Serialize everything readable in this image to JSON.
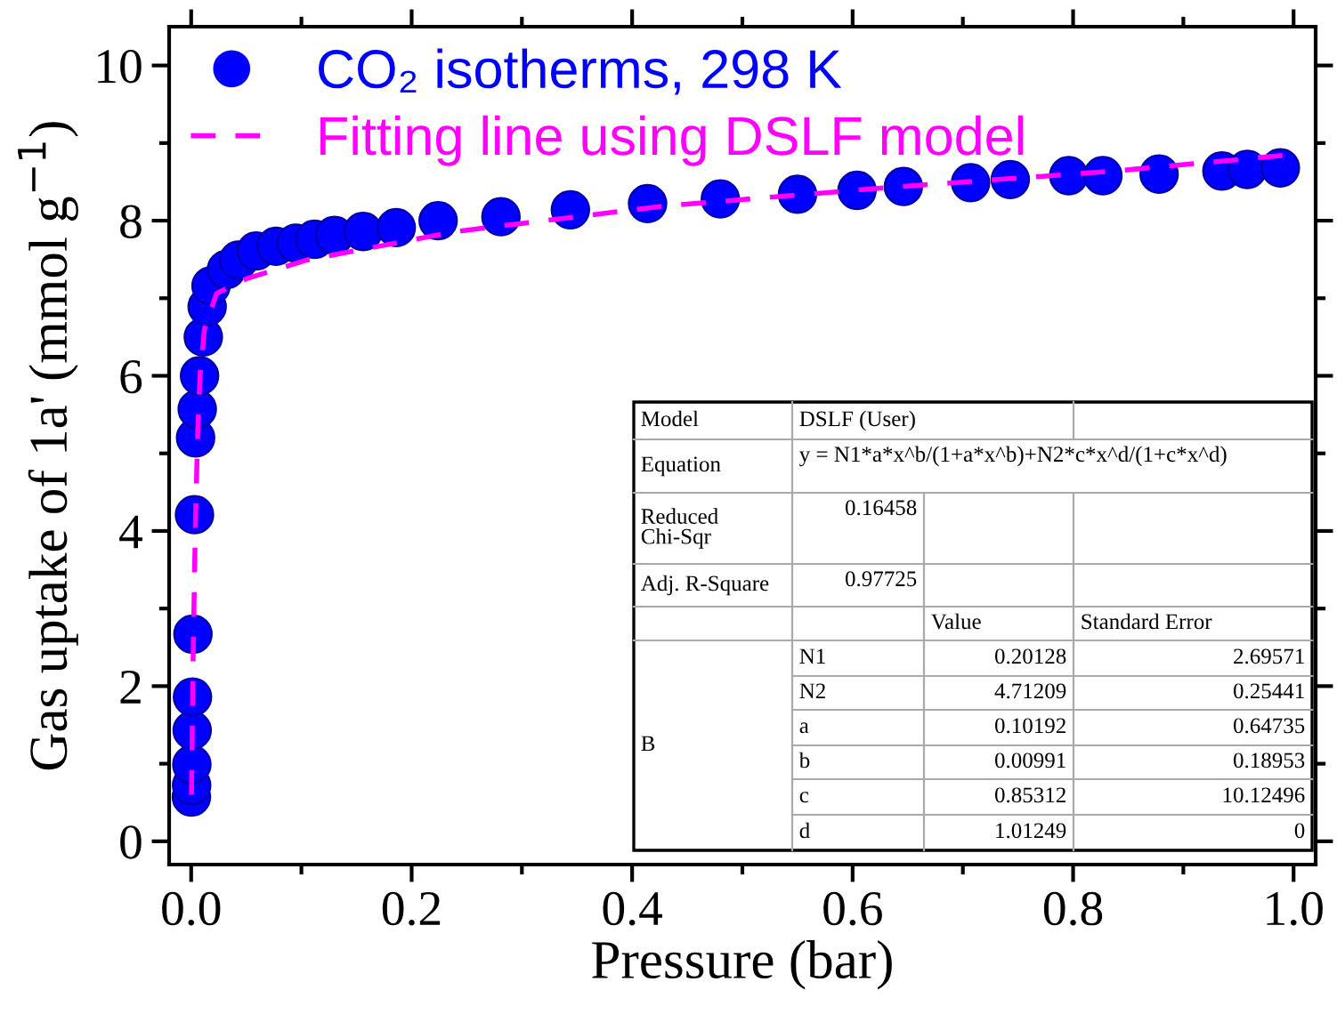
{
  "chart_data": {
    "type": "scatter",
    "xlabel": "Pressure (bar)",
    "ylabel": "Gas uptake of 1a' (mmol g$^{−1}$)",
    "xlim": [
      -0.02,
      1.02
    ],
    "ylim": [
      -0.3,
      10.5
    ],
    "xticks": [
      {
        "value": 0,
        "label": "0.0"
      },
      {
        "value": 0.2,
        "label": "0.2"
      },
      {
        "value": 0.4,
        "label": "0.4"
      },
      {
        "value": 0.6,
        "label": "0.6"
      },
      {
        "value": 0.8,
        "label": "0.8"
      },
      {
        "value": 1.0,
        "label": "1.0"
      }
    ],
    "yticks": [
      0,
      2,
      4,
      6,
      8,
      10
    ],
    "grid": false,
    "legend": "top left",
    "series": [
      {
        "name": "CO₂ isotherms, 298 K",
        "marker": "circle",
        "color": "#0000ff",
        "x": [
          0.0002,
          0.0004,
          0.0006,
          0.0009,
          0.0012,
          0.0016,
          0.003,
          0.004,
          0.0055,
          0.0076,
          0.011,
          0.0145,
          0.018,
          0.032,
          0.043,
          0.059,
          0.077,
          0.095,
          0.112,
          0.13,
          0.156,
          0.186,
          0.224,
          0.281,
          0.344,
          0.414,
          0.48,
          0.55,
          0.604,
          0.646,
          0.707,
          0.743,
          0.796,
          0.827,
          0.878,
          0.935,
          0.958,
          0.988
        ],
        "values": [
          0.57,
          0.72,
          0.99,
          1.43,
          1.86,
          2.67,
          4.21,
          5.2,
          5.57,
          6.0,
          6.5,
          6.89,
          7.16,
          7.37,
          7.49,
          7.61,
          7.67,
          7.71,
          7.76,
          7.81,
          7.86,
          7.91,
          8.0,
          8.05,
          8.14,
          8.22,
          8.28,
          8.34,
          8.39,
          8.44,
          8.49,
          8.53,
          8.58,
          8.58,
          8.6,
          8.64,
          8.66,
          8.68
        ]
      },
      {
        "name": "Fitting line using DSLF model",
        "type": "line",
        "line_style": "dashed",
        "color": "#ff00ff",
        "x": [
          0.0003,
          0.001,
          0.002,
          0.004,
          0.006,
          0.008,
          0.012,
          0.023,
          0.05,
          0.104,
          0.24,
          0.43,
          0.635,
          0.838,
          0.99
        ],
        "values": [
          0.6,
          1.5,
          2.6,
          4.2,
          5.3,
          6.0,
          6.6,
          7.06,
          7.25,
          7.49,
          7.86,
          8.19,
          8.43,
          8.64,
          8.84
        ]
      }
    ],
    "annotations": [
      "Model",
      "DSLF (User)",
      "Equation",
      "y = N1*a*x^b/(1+a*x^b)+N2*c*x^d/(1+c*x^d)",
      "Reduced\nChi-Sqr",
      "0.16458",
      "Adj. R-Square",
      "0.97725",
      "Value",
      "Standard Error",
      "B",
      "N1",
      "0.20128",
      "2.69571",
      "N2",
      "4.71209",
      "0.25441",
      "a",
      "0.10192",
      "0.64735",
      "b",
      "0.00991",
      "0.18953",
      "c",
      "0.85312",
      "10.12496",
      "d",
      "1.01249",
      "0"
    ]
  }
}
